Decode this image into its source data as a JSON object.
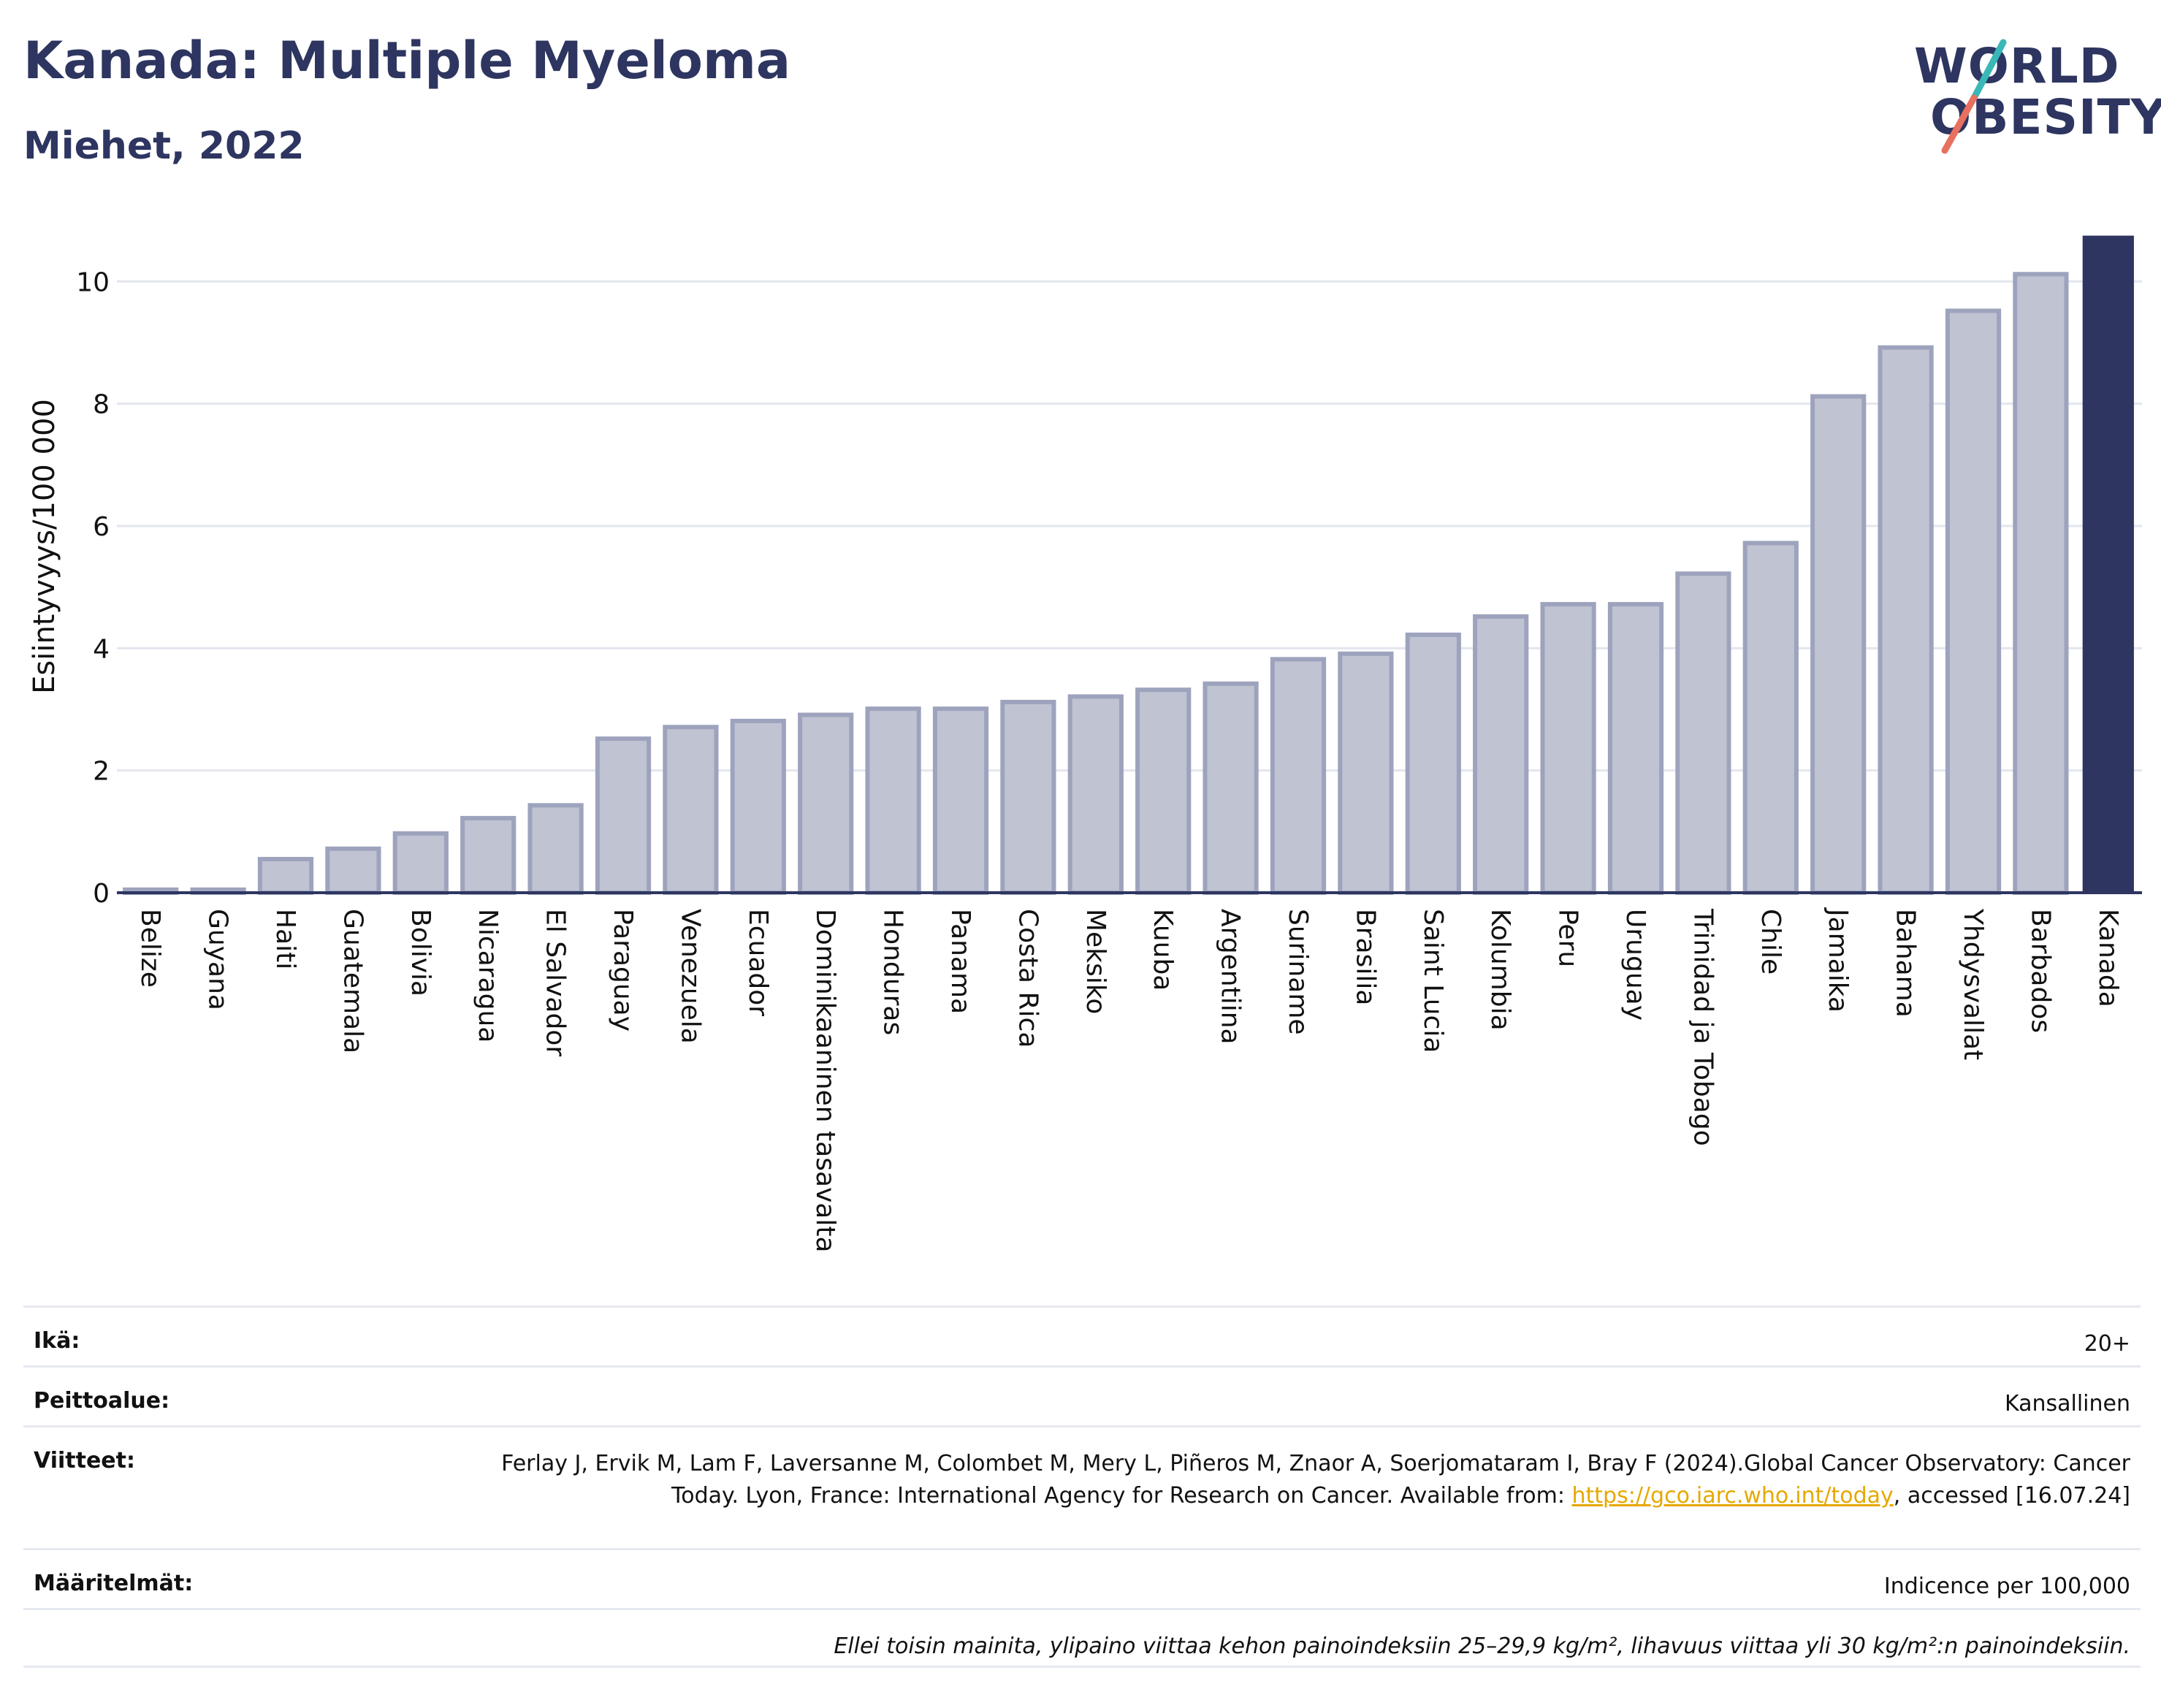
{
  "header": {
    "title": "Kanada: Multiple Myeloma",
    "subtitle": "Miehet, 2022"
  },
  "logo": {
    "line1": "WORLD",
    "line2": "OBESITY",
    "slash_colors": [
      "#3ab7b7",
      "#e8705f"
    ]
  },
  "colors": {
    "bar_default": "#bfc3d2",
    "bar_default_stroke": "#9ea3bd",
    "bar_highlight": "#2d3560",
    "axis": "#2d3560",
    "grid": "#e3e6ee",
    "link": "#e6a800"
  },
  "chart_data": {
    "type": "bar",
    "ylabel": "Esiintyvyys/100 000",
    "ylim": [
      0,
      10.9
    ],
    "yticks": [
      0,
      2,
      4,
      6,
      8,
      10
    ],
    "grid": true,
    "highlight": "Kanada",
    "categories": [
      "Belize",
      "Guyana",
      "Haiti",
      "Guatemala",
      "Bolivia",
      "Nicaragua",
      "El Salvador",
      "Paraguay",
      "Venezuela",
      "Ecuador",
      "Dominikaaninen tasavalta",
      "Honduras",
      "Panama",
      "Costa Rica",
      "Meksiko",
      "Kuuba",
      "Argentiina",
      "Suriname",
      "Brasilia",
      "Saint Lucia",
      "Kolumbia",
      "Peru",
      "Uruguay",
      "Trinidad ja Tobago",
      "Chile",
      "Jamaika",
      "Bahama",
      "Yhdysvallat",
      "Barbados",
      "Kanada"
    ],
    "values": [
      0.05,
      0.05,
      0.55,
      0.72,
      0.97,
      1.22,
      1.43,
      2.52,
      2.71,
      2.81,
      2.91,
      3.01,
      3.01,
      3.12,
      3.21,
      3.32,
      3.42,
      3.82,
      3.91,
      4.22,
      4.52,
      4.72,
      4.72,
      5.22,
      5.72,
      8.12,
      8.92,
      9.52,
      10.12,
      10.75
    ]
  },
  "info": {
    "age_label": "Ikä:",
    "age_value": "20+",
    "coverage_label": "Peittoalue:",
    "coverage_value": "Kansallinen",
    "refs_label": "Viitteet:",
    "refs_text_1": "Ferlay J, Ervik M, Lam F, Laversanne M, Colombet M, Mery L, Piñeros M, Znaor A, Soerjomataram I, Bray F (2024).Global Cancer Observatory: Cancer Today. Lyon, France: International Agency for Research on Cancer. Available from: ",
    "refs_link": "https://gco.iarc.who.int/today",
    "refs_text_2": ", accessed [16.07.24]",
    "defs_label": "Määritelmät:",
    "defs_value": "Indicence per 100,000",
    "note": "Ellei toisin mainita, ylipaino viittaa kehon painoindeksiin 25–29,9 kg/m², lihavuus viittaa yli 30 kg/m²:n painoindeksiin."
  }
}
